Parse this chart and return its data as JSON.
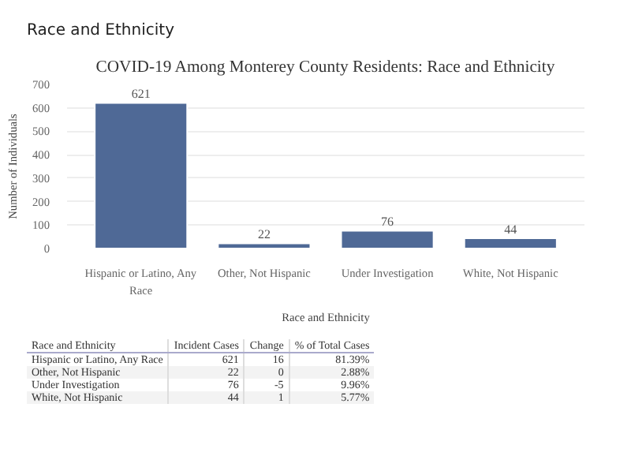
{
  "chart_data": {
    "type": "bar",
    "title": "COVID-19 Among Monterey County Residents: Race and Ethnicity",
    "xlabel": "Race and Ethnicity",
    "ylabel": "Number of Individuals",
    "categories": [
      "Hispanic or Latino, Any Race",
      "Other, Not Hispanic",
      "Under Investigation",
      "White, Not Hispanic"
    ],
    "values": [
      621,
      22,
      76,
      44
    ],
    "color": "#4f6996",
    "data_labels": true,
    "ylim": [
      0,
      700
    ],
    "yticks": [
      0,
      100,
      200,
      300,
      400,
      500,
      600,
      700
    ],
    "grid": "y",
    "annotations": [
      "Race and Ethnicity",
      "Race and Ethnicity",
      "Incident Cases",
      "Change",
      "% of Total Cases",
      "Hispanic or Latino, Any Race",
      "621",
      "16",
      "81.39%",
      "Other, Not Hispanic",
      "22",
      "0",
      "2.88%",
      "Under Investigation",
      "76",
      "-5",
      "9.96%",
      "White, Not Hispanic",
      "44",
      "1",
      "5.77%"
    ]
  }
}
